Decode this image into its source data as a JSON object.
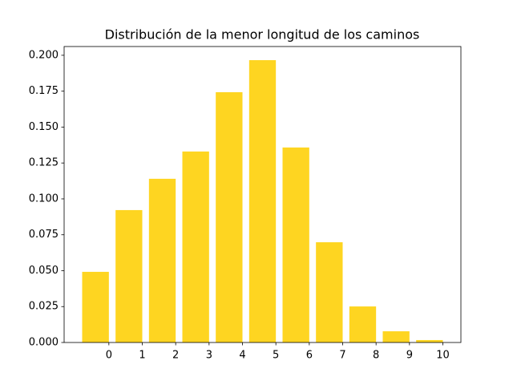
{
  "chart_data": {
    "type": "bar",
    "title": "Distribución de la menor longitud de los caminos",
    "x": [
      0,
      1,
      2,
      3,
      4,
      5,
      6,
      7,
      8,
      9,
      10
    ],
    "values": [
      0.0492,
      0.0922,
      0.114,
      0.133,
      0.1743,
      0.1966,
      0.1358,
      0.0698,
      0.0251,
      0.0078,
      0.0017
    ],
    "color": "#fed521",
    "xlim": [
      -1.34,
      10.54
    ],
    "xticks": [
      0,
      1,
      2,
      3,
      4,
      5,
      6,
      7,
      8,
      9,
      10
    ],
    "ylim": [
      0,
      0.2061
    ],
    "yticks": [
      {
        "value": 0,
        "label": "0.000"
      },
      {
        "value": 0.025,
        "label": "0.025"
      },
      {
        "value": 0.05,
        "label": "0.050"
      },
      {
        "value": 0.075,
        "label": "0.075"
      },
      {
        "value": 0.1,
        "label": "0.100"
      },
      {
        "value": 0.125,
        "label": "0.125"
      },
      {
        "value": 0.15,
        "label": "0.150"
      },
      {
        "value": 0.175,
        "label": "0.175"
      },
      {
        "value": 0.2,
        "label": "0.200"
      }
    ],
    "grid": false
  }
}
